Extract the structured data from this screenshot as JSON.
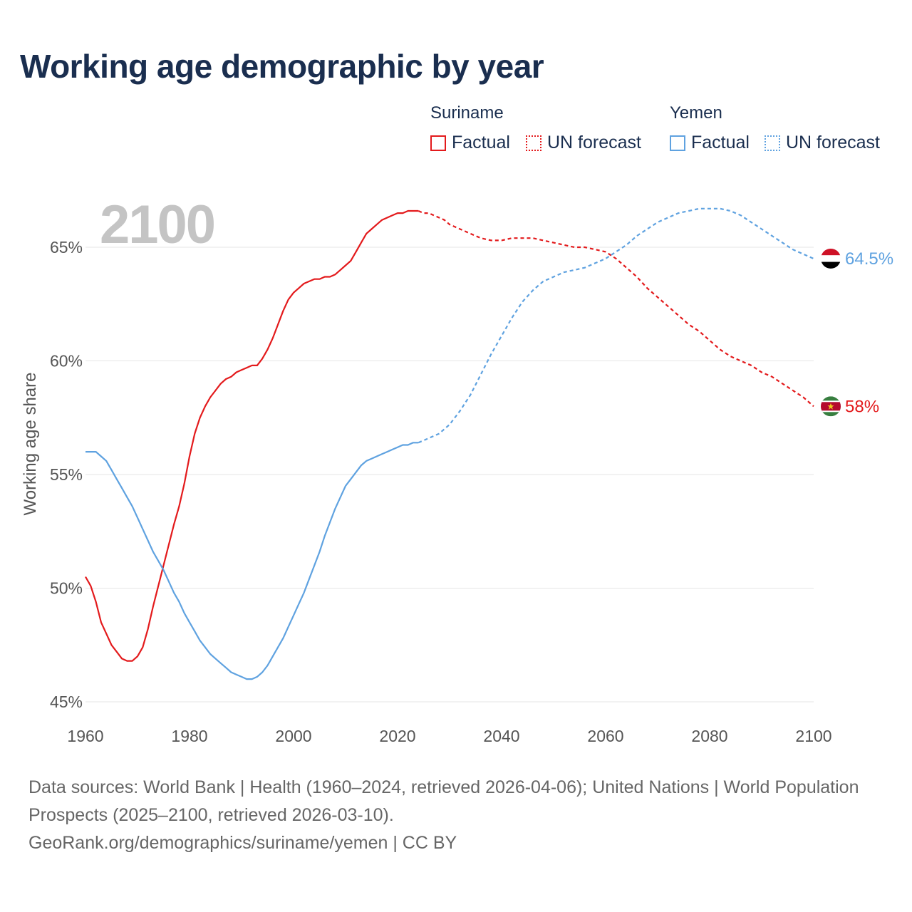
{
  "title": "Working age demographic by year",
  "year_overlay": "2100",
  "legend": {
    "groups": [
      {
        "country": "Suriname",
        "factual": "Factual",
        "forecast": "UN forecast",
        "color": "#e31a1c"
      },
      {
        "country": "Yemen",
        "factual": "Factual",
        "forecast": "UN forecast",
        "color": "#5fa2e0"
      }
    ]
  },
  "footer": {
    "sources": "Data sources: World Bank | Health (1960–2024, retrieved 2026-04-06); United Nations | World Population Prospects (2025–2100, retrieved 2026-03-10).",
    "attribution": "GeoRank.org/demographics/suriname/yemen | CC BY"
  },
  "colors": {
    "grid": "#e6e6e6",
    "axis_text": "#555555",
    "title": "#1a2e4f"
  },
  "chart_data": {
    "type": "line",
    "title": "Working age demographic by year",
    "xlabel": "",
    "ylabel": "Working age share",
    "xlim": [
      1960,
      2100
    ],
    "ylim": [
      45,
      67.5
    ],
    "x_ticks": [
      1960,
      1980,
      2000,
      2020,
      2040,
      2060,
      2080,
      2100
    ],
    "x_tick_labels": [
      "1960",
      "1980",
      "2000",
      "2020",
      "2040",
      "2060",
      "2080",
      "2100"
    ],
    "y_ticks": [
      45,
      50,
      55,
      60,
      65
    ],
    "y_tick_labels": [
      "45%",
      "50%",
      "55%",
      "60%",
      "65%"
    ],
    "grid": true,
    "factual_end_year": 2024,
    "series": [
      {
        "name": "Suriname",
        "color": "#e31a1c",
        "end_label": "58%",
        "flag": "suriname-flag",
        "points": [
          [
            1960,
            50.5
          ],
          [
            1961,
            50.1
          ],
          [
            1962,
            49.4
          ],
          [
            1963,
            48.5
          ],
          [
            1964,
            48.0
          ],
          [
            1965,
            47.5
          ],
          [
            1966,
            47.2
          ],
          [
            1967,
            46.9
          ],
          [
            1968,
            46.8
          ],
          [
            1969,
            46.8
          ],
          [
            1970,
            47.0
          ],
          [
            1971,
            47.4
          ],
          [
            1972,
            48.2
          ],
          [
            1973,
            49.2
          ],
          [
            1974,
            50.1
          ],
          [
            1975,
            51.0
          ],
          [
            1976,
            51.9
          ],
          [
            1977,
            52.8
          ],
          [
            1978,
            53.6
          ],
          [
            1979,
            54.6
          ],
          [
            1980,
            55.8
          ],
          [
            1981,
            56.8
          ],
          [
            1982,
            57.5
          ],
          [
            1983,
            58.0
          ],
          [
            1984,
            58.4
          ],
          [
            1985,
            58.7
          ],
          [
            1986,
            59.0
          ],
          [
            1987,
            59.2
          ],
          [
            1988,
            59.3
          ],
          [
            1989,
            59.5
          ],
          [
            1990,
            59.6
          ],
          [
            1991,
            59.7
          ],
          [
            1992,
            59.8
          ],
          [
            1993,
            59.8
          ],
          [
            1994,
            60.1
          ],
          [
            1995,
            60.5
          ],
          [
            1996,
            61.0
          ],
          [
            1997,
            61.6
          ],
          [
            1998,
            62.2
          ],
          [
            1999,
            62.7
          ],
          [
            2000,
            63.0
          ],
          [
            2001,
            63.2
          ],
          [
            2002,
            63.4
          ],
          [
            2003,
            63.5
          ],
          [
            2004,
            63.6
          ],
          [
            2005,
            63.6
          ],
          [
            2006,
            63.7
          ],
          [
            2007,
            63.7
          ],
          [
            2008,
            63.8
          ],
          [
            2009,
            64.0
          ],
          [
            2010,
            64.2
          ],
          [
            2011,
            64.4
          ],
          [
            2012,
            64.8
          ],
          [
            2013,
            65.2
          ],
          [
            2014,
            65.6
          ],
          [
            2015,
            65.8
          ],
          [
            2016,
            66.0
          ],
          [
            2017,
            66.2
          ],
          [
            2018,
            66.3
          ],
          [
            2019,
            66.4
          ],
          [
            2020,
            66.5
          ],
          [
            2021,
            66.5
          ],
          [
            2022,
            66.6
          ],
          [
            2023,
            66.6
          ],
          [
            2024,
            66.6
          ],
          [
            2025,
            66.5
          ],
          [
            2026,
            66.5
          ],
          [
            2027,
            66.4
          ],
          [
            2028,
            66.3
          ],
          [
            2029,
            66.2
          ],
          [
            2030,
            66.0
          ],
          [
            2032,
            65.8
          ],
          [
            2034,
            65.6
          ],
          [
            2036,
            65.4
          ],
          [
            2038,
            65.3
          ],
          [
            2040,
            65.3
          ],
          [
            2042,
            65.4
          ],
          [
            2044,
            65.4
          ],
          [
            2046,
            65.4
          ],
          [
            2048,
            65.3
          ],
          [
            2050,
            65.2
          ],
          [
            2052,
            65.1
          ],
          [
            2054,
            65.0
          ],
          [
            2056,
            65.0
          ],
          [
            2058,
            64.9
          ],
          [
            2060,
            64.8
          ],
          [
            2062,
            64.5
          ],
          [
            2064,
            64.1
          ],
          [
            2066,
            63.7
          ],
          [
            2068,
            63.2
          ],
          [
            2070,
            62.8
          ],
          [
            2072,
            62.4
          ],
          [
            2074,
            62.0
          ],
          [
            2076,
            61.6
          ],
          [
            2078,
            61.3
          ],
          [
            2080,
            60.9
          ],
          [
            2082,
            60.5
          ],
          [
            2084,
            60.2
          ],
          [
            2086,
            60.0
          ],
          [
            2088,
            59.8
          ],
          [
            2090,
            59.5
          ],
          [
            2092,
            59.3
          ],
          [
            2094,
            59.0
          ],
          [
            2096,
            58.7
          ],
          [
            2098,
            58.4
          ],
          [
            2100,
            58.0
          ]
        ]
      },
      {
        "name": "Yemen",
        "color": "#5fa2e0",
        "end_label": "64.5%",
        "flag": "yemen-flag",
        "points": [
          [
            1960,
            56.0
          ],
          [
            1961,
            56.0
          ],
          [
            1962,
            56.0
          ],
          [
            1963,
            55.8
          ],
          [
            1964,
            55.6
          ],
          [
            1965,
            55.2
          ],
          [
            1966,
            54.8
          ],
          [
            1967,
            54.4
          ],
          [
            1968,
            54.0
          ],
          [
            1969,
            53.6
          ],
          [
            1970,
            53.1
          ],
          [
            1971,
            52.6
          ],
          [
            1972,
            52.1
          ],
          [
            1973,
            51.6
          ],
          [
            1974,
            51.2
          ],
          [
            1975,
            50.8
          ],
          [
            1976,
            50.3
          ],
          [
            1977,
            49.8
          ],
          [
            1978,
            49.4
          ],
          [
            1979,
            48.9
          ],
          [
            1980,
            48.5
          ],
          [
            1981,
            48.1
          ],
          [
            1982,
            47.7
          ],
          [
            1983,
            47.4
          ],
          [
            1984,
            47.1
          ],
          [
            1985,
            46.9
          ],
          [
            1986,
            46.7
          ],
          [
            1987,
            46.5
          ],
          [
            1988,
            46.3
          ],
          [
            1989,
            46.2
          ],
          [
            1990,
            46.1
          ],
          [
            1991,
            46.0
          ],
          [
            1992,
            46.0
          ],
          [
            1993,
            46.1
          ],
          [
            1994,
            46.3
          ],
          [
            1995,
            46.6
          ],
          [
            1996,
            47.0
          ],
          [
            1997,
            47.4
          ],
          [
            1998,
            47.8
          ],
          [
            1999,
            48.3
          ],
          [
            2000,
            48.8
          ],
          [
            2001,
            49.3
          ],
          [
            2002,
            49.8
          ],
          [
            2003,
            50.4
          ],
          [
            2004,
            51.0
          ],
          [
            2005,
            51.6
          ],
          [
            2006,
            52.3
          ],
          [
            2007,
            52.9
          ],
          [
            2008,
            53.5
          ],
          [
            2009,
            54.0
          ],
          [
            2010,
            54.5
          ],
          [
            2011,
            54.8
          ],
          [
            2012,
            55.1
          ],
          [
            2013,
            55.4
          ],
          [
            2014,
            55.6
          ],
          [
            2015,
            55.7
          ],
          [
            2016,
            55.8
          ],
          [
            2017,
            55.9
          ],
          [
            2018,
            56.0
          ],
          [
            2019,
            56.1
          ],
          [
            2020,
            56.2
          ],
          [
            2021,
            56.3
          ],
          [
            2022,
            56.3
          ],
          [
            2023,
            56.4
          ],
          [
            2024,
            56.4
          ],
          [
            2026,
            56.6
          ],
          [
            2028,
            56.8
          ],
          [
            2030,
            57.2
          ],
          [
            2032,
            57.8
          ],
          [
            2034,
            58.5
          ],
          [
            2036,
            59.4
          ],
          [
            2038,
            60.3
          ],
          [
            2040,
            61.1
          ],
          [
            2042,
            61.9
          ],
          [
            2044,
            62.6
          ],
          [
            2046,
            63.1
          ],
          [
            2048,
            63.5
          ],
          [
            2050,
            63.7
          ],
          [
            2052,
            63.9
          ],
          [
            2054,
            64.0
          ],
          [
            2056,
            64.1
          ],
          [
            2058,
            64.3
          ],
          [
            2060,
            64.5
          ],
          [
            2062,
            64.8
          ],
          [
            2064,
            65.1
          ],
          [
            2066,
            65.5
          ],
          [
            2068,
            65.8
          ],
          [
            2070,
            66.1
          ],
          [
            2072,
            66.3
          ],
          [
            2074,
            66.5
          ],
          [
            2076,
            66.6
          ],
          [
            2078,
            66.7
          ],
          [
            2080,
            66.7
          ],
          [
            2082,
            66.7
          ],
          [
            2084,
            66.6
          ],
          [
            2086,
            66.4
          ],
          [
            2088,
            66.1
          ],
          [
            2090,
            65.8
          ],
          [
            2092,
            65.5
          ],
          [
            2094,
            65.2
          ],
          [
            2096,
            64.9
          ],
          [
            2098,
            64.7
          ],
          [
            2100,
            64.5
          ]
        ]
      }
    ]
  }
}
